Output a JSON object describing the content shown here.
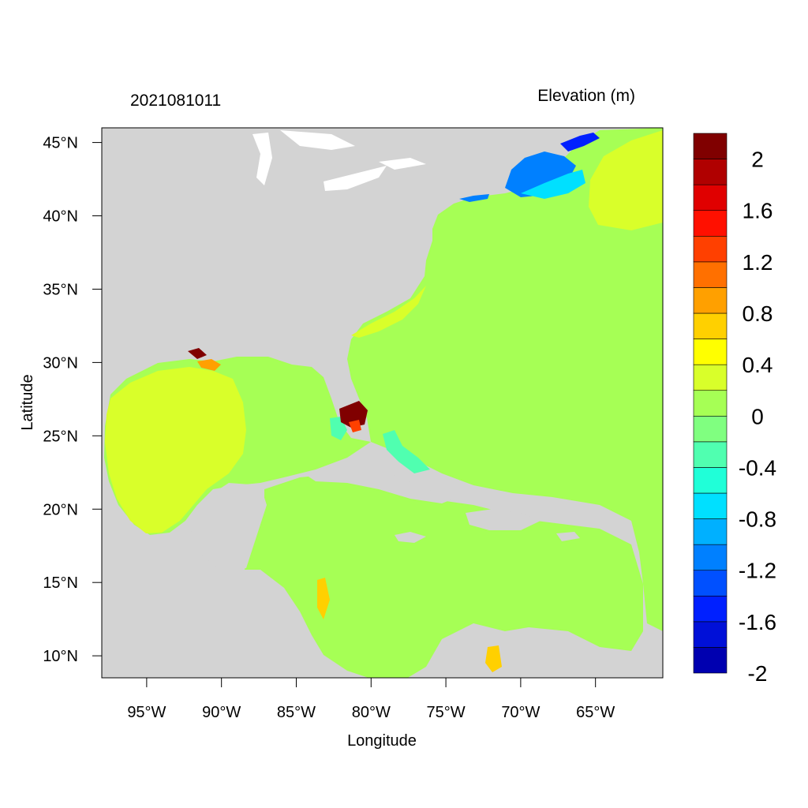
{
  "map": {
    "timestamp": "2021081011",
    "variable_title": "Elevation (m)",
    "x_axis_label": "Longitude",
    "y_axis_label": "Latitude",
    "lon_range": [
      -98,
      -60.5
    ],
    "lat_range": [
      8.5,
      46
    ],
    "x_ticks": [
      {
        "value": -95,
        "label": "95°W"
      },
      {
        "value": -90,
        "label": "90°W"
      },
      {
        "value": -85,
        "label": "85°W"
      },
      {
        "value": -80,
        "label": "80°W"
      },
      {
        "value": -75,
        "label": "75°W"
      },
      {
        "value": -70,
        "label": "70°W"
      },
      {
        "value": -65,
        "label": "65°W"
      }
    ],
    "y_ticks": [
      {
        "value": 45,
        "label": "45°N"
      },
      {
        "value": 40,
        "label": "40°N"
      },
      {
        "value": 35,
        "label": "35°N"
      },
      {
        "value": 30,
        "label": "30°N"
      },
      {
        "value": 25,
        "label": "25°N"
      },
      {
        "value": 20,
        "label": "20°N"
      },
      {
        "value": 15,
        "label": "15°N"
      },
      {
        "value": 10,
        "label": "10°N"
      }
    ],
    "colors": {
      "land": "#d3d3d3",
      "ocean_near_zero": "#a6ff55",
      "gulf_positive": "#d9ff2a"
    }
  },
  "colorbar": {
    "colors": [
      "#0000b0",
      "#0010d8",
      "#0020ff",
      "#0050ff",
      "#0080ff",
      "#00b0ff",
      "#00e0ff",
      "#20ffd8",
      "#50ffb0",
      "#80ff80",
      "#a6ff55",
      "#d9ff2a",
      "#ffff00",
      "#ffd000",
      "#ffa000",
      "#ff7000",
      "#ff4000",
      "#ff1000",
      "#e00000",
      "#b00000",
      "#800000"
    ],
    "labels": [
      "2",
      "1.6",
      "1.2",
      "0.8",
      "0.4",
      "0",
      "-0.4",
      "-0.8",
      "-1.2",
      "-1.6",
      "-2"
    ]
  }
}
